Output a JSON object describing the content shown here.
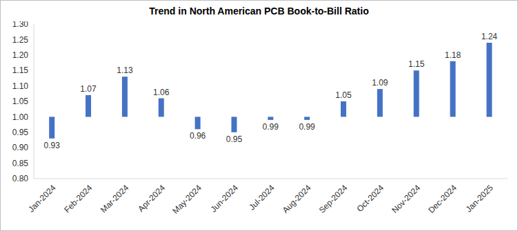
{
  "chart_data": {
    "type": "bar",
    "title": "Trend in North American PCB Book-to-Bill Ratio",
    "categories": [
      "Jan-2024",
      "Feb-2024",
      "Mar-2024",
      "Apr-2024",
      "May-2024",
      "Jun-2024",
      "Jul-2024",
      "Aug-2024",
      "Sep-2024",
      "Oct-2024",
      "Nov-2024",
      "Dec-2024",
      "Jan-2025"
    ],
    "values": [
      0.93,
      1.07,
      1.13,
      1.06,
      0.96,
      0.95,
      0.99,
      0.99,
      1.05,
      1.09,
      1.15,
      1.18,
      1.24
    ],
    "baseline": 1,
    "color": "#4472c4",
    "ylim": [
      0.8,
      1.3
    ],
    "yticks": [
      {
        "value": 0.8,
        "label": "0.80"
      },
      {
        "value": 0.85,
        "label": "0.85"
      },
      {
        "value": 0.9,
        "label": "0.90"
      },
      {
        "value": 0.95,
        "label": "0.95"
      },
      {
        "value": 1,
        "label": "1.00"
      },
      {
        "value": 1.05,
        "label": "1.05"
      },
      {
        "value": 1.1,
        "label": "1.10"
      },
      {
        "value": 1.15,
        "label": "1.15"
      },
      {
        "value": 1.2,
        "label": "1.20"
      },
      {
        "value": 1.25,
        "label": "1.25"
      },
      {
        "value": 1.3,
        "label": "1.30"
      }
    ],
    "grid": false,
    "data_labels": true
  }
}
